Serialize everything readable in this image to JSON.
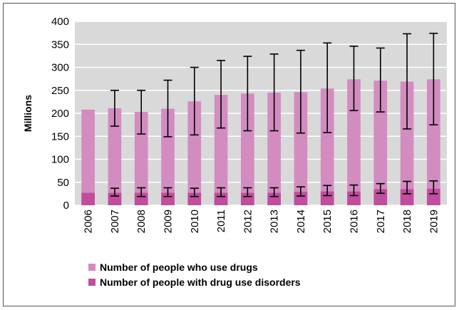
{
  "chart_data": {
    "type": "bar",
    "title": "",
    "xlabel": "",
    "ylabel": "Millions",
    "ylim": [
      0,
      400
    ],
    "yticks": [
      0,
      50,
      100,
      150,
      200,
      250,
      300,
      350,
      400
    ],
    "grid": true,
    "legend_position": "bottom-left",
    "categories": [
      "2006",
      "2007",
      "2008",
      "2009",
      "2010",
      "2011",
      "2012",
      "2013",
      "2014",
      "2015",
      "2016",
      "2017",
      "2018",
      "2019"
    ],
    "series": [
      {
        "name": "Number of people who use drugs",
        "color": "#d28cc0",
        "values": [
          208,
          211,
          203,
          210,
          226,
          240,
          243,
          245,
          246,
          254,
          274,
          271,
          269,
          274
        ],
        "error_low": [
          null,
          172,
          155,
          149,
          153,
          168,
          162,
          162,
          157,
          158,
          206,
          203,
          166,
          175
        ],
        "error_high": [
          null,
          250,
          250,
          272,
          300,
          315,
          324,
          329,
          337,
          353,
          346,
          342,
          373,
          374
        ]
      },
      {
        "name": "Number of people with drug use disorders",
        "color": "#c04d9d",
        "values": [
          27,
          27,
          27,
          27,
          27,
          27,
          27,
          27,
          29,
          30,
          30,
          35,
          35,
          36
        ],
        "error_low": [
          null,
          20,
          19,
          19,
          19,
          19,
          19,
          19,
          20,
          21,
          21,
          26,
          25,
          25
        ],
        "error_high": [
          null,
          37,
          38,
          38,
          37,
          38,
          38,
          38,
          40,
          43,
          44,
          47,
          52,
          53
        ]
      }
    ]
  }
}
